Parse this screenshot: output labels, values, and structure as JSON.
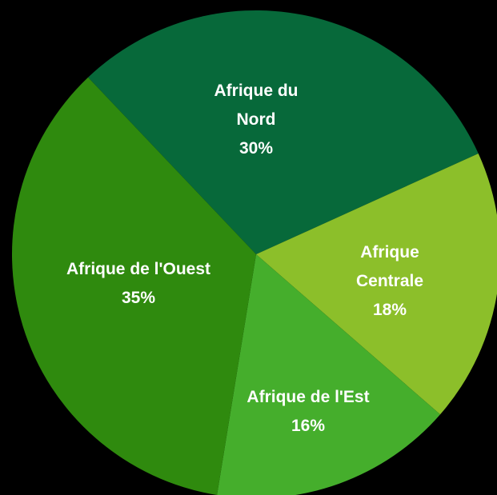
{
  "chart_data": {
    "type": "pie",
    "categories": [
      "Afrique du Nord",
      "Afrique Centrale",
      "Afrique de l'Est",
      "Afrique de l'Ouest"
    ],
    "values": [
      30,
      18,
      16,
      35
    ],
    "value_labels": [
      "30%",
      "18%",
      "16%",
      "35%"
    ],
    "colors": [
      "#07693a",
      "#8cbf2a",
      "#45ae2c",
      "#2f8a0e"
    ]
  }
}
